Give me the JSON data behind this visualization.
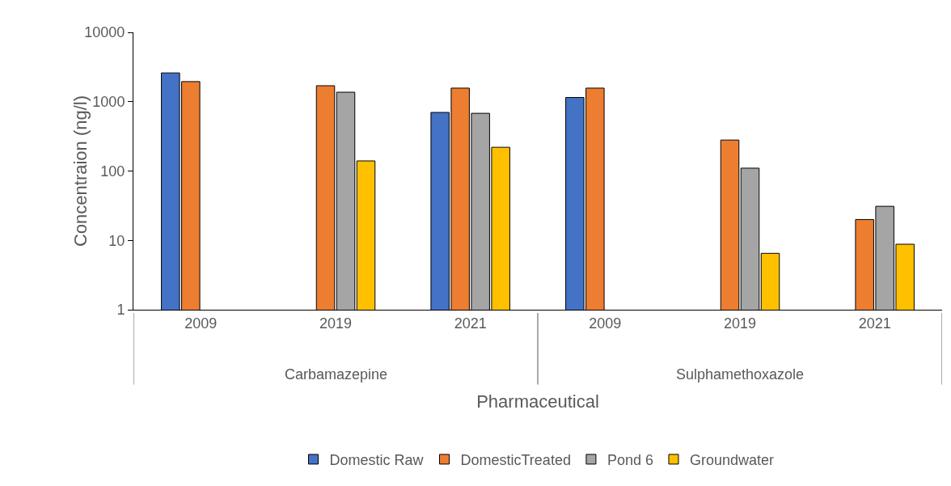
{
  "chart_data": {
    "type": "bar",
    "xlabel": "Pharmaceutical",
    "ylabel": "Concentraion (ng/l)",
    "categories": [
      "2009",
      "2019",
      "2021",
      "2009",
      "2019",
      "2021"
    ],
    "annotations": [
      "Carbamazepine",
      "Sulphamethoxazole"
    ],
    "series": [
      {
        "name": "Domestic Raw",
        "color": "#4472c4",
        "values": [
          2600,
          null,
          700,
          1150,
          null,
          null
        ]
      },
      {
        "name": "DomesticTreated",
        "color": "#ed7d31",
        "values": [
          1950,
          1700,
          1570,
          1570,
          280,
          20
        ]
      },
      {
        "name": "Pond 6",
        "color": "#a5a5a5",
        "values": [
          null,
          1370,
          680,
          null,
          110,
          31
        ]
      },
      {
        "name": "Groundwater",
        "color": "#ffc000",
        "values": [
          null,
          140,
          220,
          null,
          6.5,
          8.8
        ]
      }
    ],
    "log": "y",
    "ylim": [
      1,
      10000
    ],
    "yticks": [
      1,
      10,
      100,
      1000,
      10000
    ],
    "grid": false,
    "legend": "bottom"
  }
}
